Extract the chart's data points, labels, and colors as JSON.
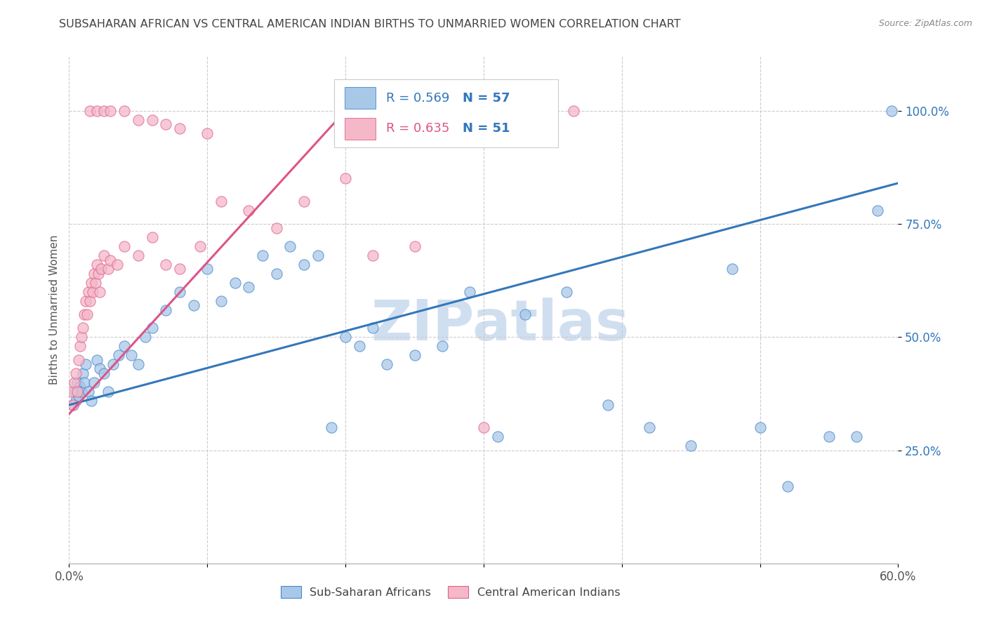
{
  "title": "SUBSAHARAN AFRICAN VS CENTRAL AMERICAN INDIAN BIRTHS TO UNMARRIED WOMEN CORRELATION CHART",
  "source": "Source: ZipAtlas.com",
  "ylabel": "Births to Unmarried Women",
  "xlim": [
    0.0,
    60.0
  ],
  "ylim": [
    0.0,
    112.0
  ],
  "yticks": [
    25.0,
    50.0,
    75.0,
    100.0
  ],
  "ytick_labels": [
    "25.0%",
    "50.0%",
    "75.0%",
    "100.0%"
  ],
  "xtick_vals": [
    0,
    10,
    20,
    30,
    40,
    50,
    60
  ],
  "xtick_labels": [
    "0.0%",
    "",
    "",
    "",
    "",
    "",
    "60.0%"
  ],
  "legend_r1": "R = 0.569",
  "legend_n1": "N = 57",
  "legend_r2": "R = 0.635",
  "legend_n2": "N = 51",
  "label_blue": "Sub-Saharan Africans",
  "label_pink": "Central American Indians",
  "blue_color": "#a8c8e8",
  "pink_color": "#f4b8c8",
  "blue_edge_color": "#4488cc",
  "pink_edge_color": "#e06090",
  "blue_line_color": "#3377bb",
  "pink_line_color": "#dd5588",
  "title_color": "#444444",
  "source_color": "#888888",
  "watermark_text": "ZIPatlas",
  "watermark_color": "#d0dff0",
  "blue_scatter_x": [
    0.3,
    0.4,
    0.5,
    0.6,
    0.7,
    0.8,
    0.9,
    1.0,
    1.1,
    1.2,
    1.4,
    1.6,
    1.8,
    2.0,
    2.2,
    2.5,
    2.8,
    3.2,
    3.6,
    4.0,
    4.5,
    5.0,
    5.5,
    6.0,
    7.0,
    8.0,
    9.0,
    10.0,
    11.0,
    12.0,
    13.0,
    14.0,
    15.0,
    16.0,
    17.0,
    18.0,
    19.0,
    20.0,
    21.0,
    22.0,
    23.0,
    25.0,
    27.0,
    29.0,
    31.0,
    33.0,
    36.0,
    39.0,
    42.0,
    45.0,
    48.0,
    50.0,
    52.0,
    55.0,
    57.0,
    58.5,
    59.5
  ],
  "blue_scatter_y": [
    35,
    38,
    36,
    40,
    37,
    39,
    38,
    42,
    40,
    44,
    38,
    36,
    40,
    45,
    43,
    42,
    38,
    44,
    46,
    48,
    46,
    44,
    50,
    52,
    56,
    60,
    57,
    65,
    58,
    62,
    61,
    68,
    64,
    70,
    66,
    68,
    30,
    50,
    48,
    52,
    44,
    46,
    48,
    60,
    28,
    55,
    60,
    35,
    30,
    26,
    65,
    30,
    17,
    28,
    28,
    78,
    100
  ],
  "pink_scatter_x": [
    0.2,
    0.3,
    0.4,
    0.5,
    0.6,
    0.7,
    0.8,
    0.9,
    1.0,
    1.1,
    1.2,
    1.3,
    1.4,
    1.5,
    1.6,
    1.7,
    1.8,
    1.9,
    2.0,
    2.1,
    2.2,
    2.3,
    2.5,
    2.8,
    3.0,
    3.5,
    4.0,
    5.0,
    6.0,
    7.0,
    8.0,
    9.5,
    11.0,
    13.0,
    15.0,
    17.0,
    20.0,
    22.0,
    25.0,
    30.0,
    36.5
  ],
  "pink_scatter_y": [
    38,
    35,
    40,
    42,
    38,
    45,
    48,
    50,
    52,
    55,
    58,
    55,
    60,
    58,
    62,
    60,
    64,
    62,
    66,
    64,
    60,
    65,
    68,
    65,
    67,
    66,
    70,
    68,
    72,
    66,
    65,
    70,
    80,
    78,
    74,
    80,
    85,
    68,
    70,
    30,
    100
  ],
  "pink_scatter_x2": [
    1.5,
    2.0,
    2.5,
    3.0,
    4.0,
    5.0,
    6.0,
    7.0,
    8.0,
    10.0
  ],
  "pink_scatter_y2": [
    100,
    100,
    100,
    100,
    100,
    98,
    98,
    97,
    96,
    95
  ],
  "blue_trend_x0": 0.0,
  "blue_trend_y0": 35.0,
  "blue_trend_x1": 60.0,
  "blue_trend_y1": 84.0,
  "pink_trend_x0": 0.0,
  "pink_trend_y0": 33.0,
  "pink_trend_x1": 20.0,
  "pink_trend_y1": 100.0
}
